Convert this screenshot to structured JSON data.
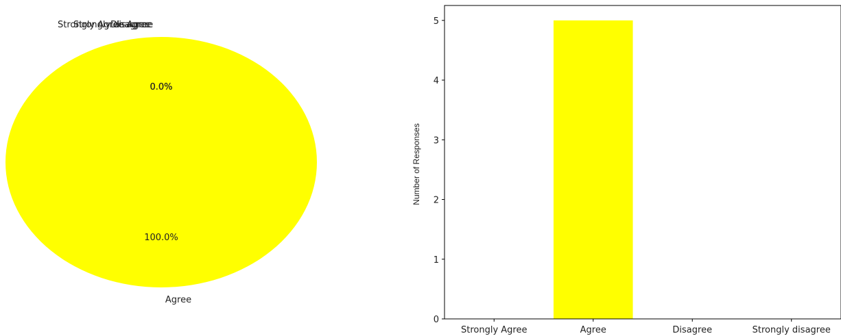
{
  "chart_data": [
    {
      "type": "pie",
      "categories": [
        "Strongly Agree",
        "Agree",
        "Disagree",
        "Strongly disagree"
      ],
      "values": [
        0,
        5,
        0,
        0
      ],
      "percent_labels": [
        "0.0%",
        "100.0%",
        "0.0%",
        "0.0%"
      ],
      "colors": [
        "#ffff00",
        "#ffff00",
        "#ffff00",
        "#ffff00"
      ]
    },
    {
      "type": "bar",
      "categories": [
        "Strongly Agree",
        "Agree",
        "Disagree",
        "Strongly disagree"
      ],
      "values": [
        0,
        5,
        0,
        0
      ],
      "ylabel": "Number of Responses",
      "ylim": [
        0,
        5.25
      ],
      "yticks": [
        "0",
        "1",
        "2",
        "3",
        "4",
        "5"
      ],
      "bar_color": "#ffff00",
      "grid": false
    }
  ]
}
